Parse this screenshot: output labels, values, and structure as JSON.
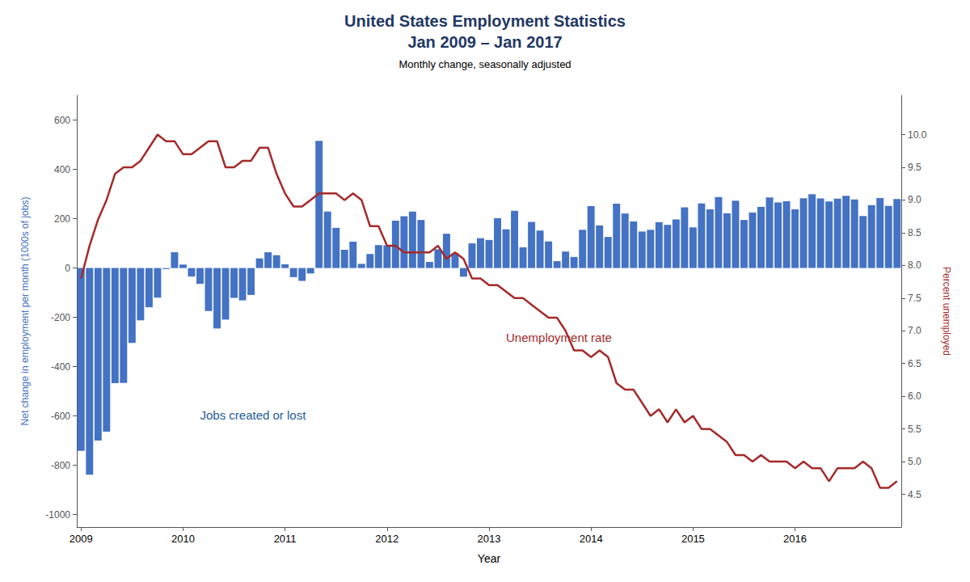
{
  "chart_data": {
    "type": "bar",
    "title": "United States Employment Statistics\nJan 2009 – Jan 2017",
    "subtitle": "Monthly change, seasonally adjusted",
    "xlabel": "Year",
    "ylabel": "Net change in employment per month (1000s of jobs)",
    "y2label": "Percent unemployed",
    "categories": [
      "2009",
      null,
      null,
      null,
      null,
      null,
      null,
      null,
      null,
      null,
      null,
      null,
      "2010",
      null,
      null,
      null,
      null,
      null,
      null,
      null,
      null,
      null,
      null,
      null,
      "2011",
      null,
      null,
      null,
      null,
      null,
      null,
      null,
      null,
      null,
      null,
      null,
      "2012",
      null,
      null,
      null,
      null,
      null,
      null,
      null,
      null,
      null,
      null,
      null,
      "2013",
      null,
      null,
      null,
      null,
      null,
      null,
      null,
      null,
      null,
      null,
      null,
      "2014",
      null,
      null,
      null,
      null,
      null,
      null,
      null,
      null,
      null,
      null,
      null,
      "2015",
      null,
      null,
      null,
      null,
      null,
      null,
      null,
      null,
      null,
      null,
      null,
      "2016",
      null,
      null,
      null,
      null,
      null,
      null,
      null,
      null,
      null,
      null,
      null,
      null
    ],
    "series": [
      {
        "type": "bar",
        "color": "#4472C4",
        "values": [
          -741,
          -838,
          -699,
          -663,
          -467,
          -466,
          -304,
          -212,
          -159,
          -120,
          -4,
          64,
          14,
          -34,
          -64,
          -174,
          -245,
          -209,
          -121,
          -131,
          -109,
          39,
          64,
          52,
          15,
          -37,
          -52,
          -22,
          516,
          229,
          163,
          74,
          107,
          17,
          57,
          93,
          92,
          192,
          210,
          229,
          195,
          25,
          76,
          139,
          60,
          -35,
          100,
          121,
          114,
          202,
          157,
          232,
          84,
          187,
          152,
          108,
          28,
          67,
          45,
          155,
          251,
          173,
          126,
          261,
          221,
          189,
          148,
          155,
          186,
          175,
          197,
          246,
          165,
          262,
          238,
          288,
          222,
          273,
          195,
          225,
          248,
          286,
          266,
          271,
          238,
          283,
          299,
          282,
          270,
          281,
          293,
          278,
          211,
          255,
          284,
          252,
          280
        ]
      },
      {
        "type": "line",
        "axis": "y2",
        "color": "#A52A2A",
        "values": [
          7.8,
          8.3,
          8.7,
          9.0,
          9.4,
          9.5,
          9.5,
          9.6,
          9.8,
          10.0,
          9.9,
          9.9,
          9.7,
          9.7,
          9.8,
          9.9,
          9.9,
          9.5,
          9.5,
          9.6,
          9.6,
          9.8,
          9.8,
          9.4,
          9.1,
          8.9,
          8.9,
          9.0,
          9.1,
          9.1,
          9.1,
          9.0,
          9.1,
          9.0,
          8.6,
          8.6,
          8.3,
          8.3,
          8.2,
          8.2,
          8.2,
          8.2,
          8.3,
          8.1,
          8.2,
          8.1,
          7.8,
          7.8,
          7.7,
          7.7,
          7.6,
          7.5,
          7.5,
          7.4,
          7.3,
          7.2,
          7.2,
          7.0,
          6.7,
          6.7,
          6.6,
          6.7,
          6.6,
          6.2,
          6.1,
          6.1,
          5.9,
          5.7,
          5.8,
          5.6,
          5.8,
          5.6,
          5.7,
          5.5,
          5.5,
          5.4,
          5.3,
          5.1,
          5.1,
          5.0,
          5.1,
          5.0,
          5.0,
          5.0,
          4.9,
          5.0,
          4.9,
          4.9,
          4.7,
          4.9,
          4.9,
          4.9,
          5.0,
          4.9,
          4.6,
          4.6,
          4.7
        ]
      }
    ],
    "ylim": [
      -1050,
      700
    ],
    "yticks": [
      -1000,
      -800,
      -600,
      -400,
      -200,
      0,
      200,
      400,
      600
    ],
    "y2lim": [
      4.0,
      10.6
    ],
    "y2ticks": [
      4.5,
      {
        "value": 5.0,
        "label": "5.0"
      },
      5.5,
      {
        "value": 6.0,
        "label": "6.0"
      },
      6.5,
      {
        "value": 7.0,
        "label": "7.0"
      },
      7.5,
      {
        "value": 8.0,
        "label": "8.0"
      },
      8.5,
      {
        "value": 9.0,
        "label": "9.0"
      },
      9.5,
      {
        "value": 10.0,
        "label": "10.0"
      }
    ],
    "annotations": [
      {
        "text": "Jobs created or lost",
        "x": 14,
        "y": -620,
        "color": "#1F5C9A"
      },
      {
        "text": "Unemployment rate",
        "x": 50,
        "y": 6.8,
        "axis": "y2",
        "color": "#A52A2A"
      }
    ],
    "grid": false
  }
}
